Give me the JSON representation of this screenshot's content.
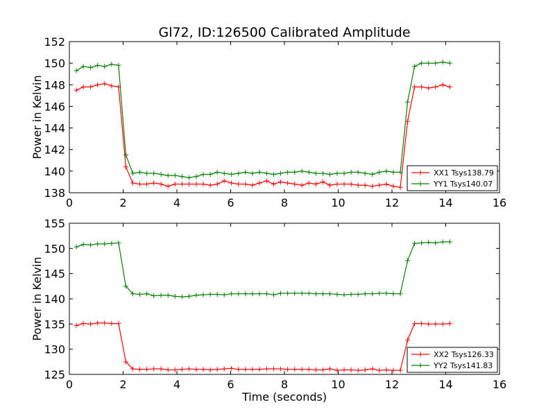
{
  "figure": {
    "title": "Gl72, ID:126500 Calibrated Amplitude",
    "ylabel": "Power in Kelvin",
    "xlabel": "Time (seconds)"
  },
  "colors": {
    "red": "#ff0000",
    "green": "#008000"
  },
  "chart_data": [
    {
      "type": "line",
      "title": "Gl72, ID:126500 Calibrated Amplitude",
      "ylabel": "Power in Kelvin",
      "xlabel": "",
      "xlim": [
        0,
        16
      ],
      "ylim": [
        138,
        152
      ],
      "xticks": [
        0,
        2,
        4,
        6,
        8,
        10,
        12,
        14,
        16
      ],
      "yticks": [
        138,
        140,
        142,
        144,
        146,
        148,
        150,
        152
      ],
      "legend": "lower-right",
      "grid": false,
      "x": [
        0.26,
        0.52,
        0.79,
        1.05,
        1.31,
        1.57,
        1.83,
        2.1,
        2.36,
        2.62,
        2.88,
        3.14,
        3.41,
        3.67,
        3.93,
        4.19,
        4.45,
        4.72,
        4.98,
        5.24,
        5.5,
        5.76,
        6.03,
        6.29,
        6.55,
        6.81,
        7.07,
        7.34,
        7.6,
        7.86,
        8.12,
        8.38,
        8.65,
        8.91,
        9.17,
        9.43,
        9.69,
        9.96,
        10.22,
        10.48,
        10.74,
        11.0,
        11.27,
        11.53,
        11.79,
        12.05,
        12.31,
        12.58,
        12.84,
        13.1,
        13.36,
        13.62,
        13.89,
        14.15
      ],
      "series": [
        {
          "name": "XX1 Tsys138.79",
          "color": "red",
          "values": [
            147.5,
            147.8,
            147.8,
            148.0,
            148.1,
            147.9,
            147.8,
            140.4,
            138.9,
            138.8,
            138.8,
            138.9,
            138.8,
            138.6,
            138.8,
            138.8,
            138.8,
            138.8,
            138.8,
            138.7,
            138.8,
            139.1,
            138.9,
            138.8,
            138.8,
            138.7,
            138.9,
            139.1,
            138.8,
            139.0,
            138.9,
            138.8,
            138.7,
            138.9,
            138.8,
            139.0,
            138.7,
            138.8,
            138.8,
            138.8,
            138.7,
            138.7,
            138.6,
            138.7,
            138.8,
            138.6,
            138.5,
            144.6,
            147.8,
            147.8,
            147.7,
            147.8,
            148.0,
            147.8
          ]
        },
        {
          "name": "YY1 Tsys140.07",
          "color": "green",
          "values": [
            149.3,
            149.7,
            149.6,
            149.8,
            149.7,
            149.9,
            149.8,
            141.5,
            139.8,
            139.9,
            139.8,
            139.8,
            139.7,
            139.6,
            139.6,
            139.5,
            139.4,
            139.5,
            139.7,
            139.7,
            139.9,
            139.8,
            139.7,
            139.8,
            139.9,
            139.8,
            139.9,
            139.8,
            139.7,
            139.8,
            139.9,
            139.9,
            140.0,
            139.9,
            139.8,
            139.8,
            139.7,
            139.8,
            139.8,
            139.9,
            139.9,
            139.8,
            139.7,
            139.9,
            140.0,
            139.9,
            139.9,
            146.4,
            149.7,
            150.0,
            150.0,
            150.0,
            150.1,
            150.0
          ]
        }
      ]
    },
    {
      "type": "line",
      "title": "",
      "ylabel": "Power in Kelvin",
      "xlabel": "Time (seconds)",
      "xlim": [
        0,
        16
      ],
      "ylim": [
        125,
        155
      ],
      "xticks": [
        0,
        2,
        4,
        6,
        8,
        10,
        12,
        14,
        16
      ],
      "yticks": [
        125,
        130,
        135,
        140,
        145,
        150,
        155
      ],
      "legend": "lower-right",
      "grid": false,
      "x": [
        0.26,
        0.52,
        0.79,
        1.05,
        1.31,
        1.57,
        1.83,
        2.1,
        2.36,
        2.62,
        2.88,
        3.14,
        3.41,
        3.67,
        3.93,
        4.19,
        4.45,
        4.72,
        4.98,
        5.24,
        5.5,
        5.76,
        6.03,
        6.29,
        6.55,
        6.81,
        7.07,
        7.34,
        7.6,
        7.86,
        8.12,
        8.38,
        8.65,
        8.91,
        9.17,
        9.43,
        9.69,
        9.96,
        10.22,
        10.48,
        10.74,
        11.0,
        11.27,
        11.53,
        11.79,
        12.05,
        12.31,
        12.58,
        12.84,
        13.1,
        13.36,
        13.62,
        13.89,
        14.15
      ],
      "series": [
        {
          "name": "XX2 Tsys126.33",
          "color": "red",
          "values": [
            134.7,
            135.1,
            135.0,
            135.2,
            135.2,
            135.1,
            135.1,
            127.5,
            126.1,
            126.0,
            126.0,
            126.1,
            126.1,
            125.9,
            125.9,
            126.0,
            126.1,
            126.0,
            126.0,
            125.9,
            126.0,
            126.1,
            126.2,
            126.0,
            126.0,
            126.0,
            126.0,
            126.1,
            126.1,
            126.1,
            126.0,
            126.0,
            126.0,
            126.0,
            125.9,
            125.9,
            126.1,
            125.8,
            125.9,
            125.9,
            125.8,
            125.9,
            126.1,
            125.8,
            125.9,
            125.8,
            125.8,
            131.8,
            135.1,
            135.1,
            135.0,
            135.0,
            135.0,
            135.1
          ]
        },
        {
          "name": "YY2 Tsys141.83",
          "color": "green",
          "values": [
            150.3,
            150.8,
            150.7,
            150.9,
            150.9,
            151.0,
            151.1,
            142.5,
            141.0,
            140.9,
            141.0,
            140.6,
            140.7,
            140.7,
            140.5,
            140.4,
            140.5,
            140.7,
            140.8,
            140.9,
            140.9,
            140.8,
            141.0,
            141.0,
            141.0,
            141.0,
            141.0,
            141.0,
            140.8,
            141.1,
            141.1,
            141.1,
            141.1,
            141.1,
            141.0,
            141.0,
            141.0,
            140.9,
            140.8,
            140.9,
            140.9,
            141.0,
            141.0,
            141.1,
            141.1,
            141.0,
            141.0,
            147.6,
            151.0,
            151.1,
            151.2,
            151.1,
            151.3,
            151.3
          ]
        }
      ]
    }
  ]
}
